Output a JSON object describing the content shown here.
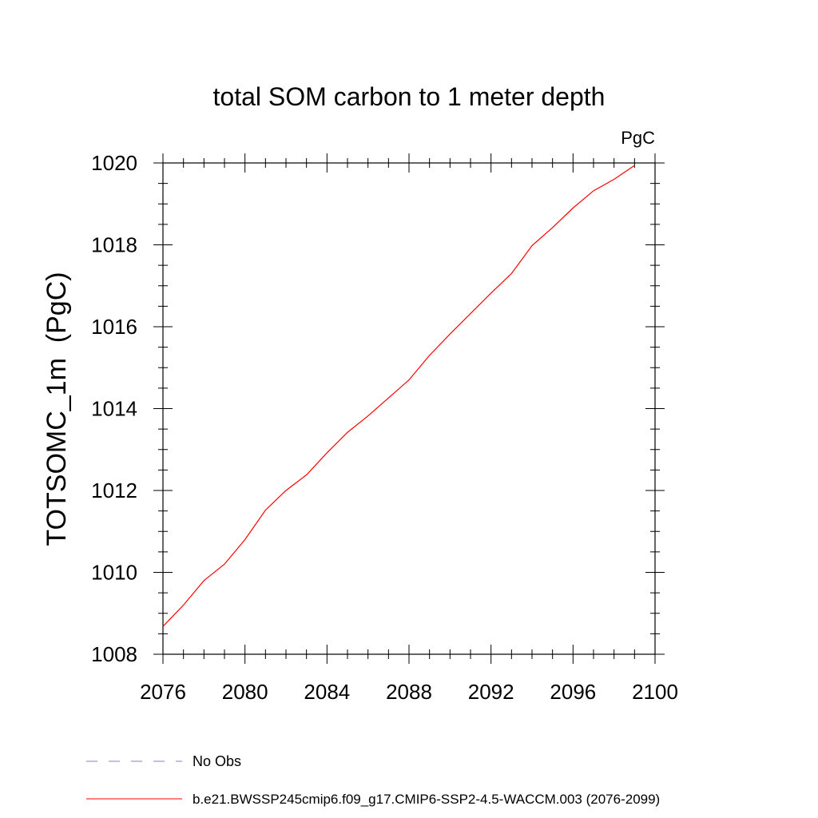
{
  "chart_data": {
    "type": "line",
    "title": "total SOM carbon to 1 meter depth",
    "units_label": "PgC",
    "ylabel": "TOTSOMC_1m  (PgC)",
    "xlabel": "",
    "xlim": [
      2076,
      2100
    ],
    "ylim": [
      1008,
      1020
    ],
    "x_ticks": [
      2076,
      2080,
      2084,
      2088,
      2092,
      2096,
      2100
    ],
    "y_ticks": [
      1008,
      1010,
      1012,
      1014,
      1016,
      1018,
      1020
    ],
    "x_minor_step": 1,
    "y_minor_step": 0.5,
    "grid": false,
    "series": [
      {
        "name": "b.e21.BWSSP245cmip6.f09_g17.CMIP6-SSP2-4.5-WACCM.003 (2076-2099)",
        "color": "#ff0000",
        "dash": "solid",
        "x": [
          2076,
          2077,
          2078,
          2079,
          2080,
          2081,
          2082,
          2083,
          2084,
          2085,
          2086,
          2087,
          2088,
          2089,
          2090,
          2091,
          2092,
          2093,
          2094,
          2095,
          2096,
          2097,
          2098,
          2099
        ],
        "y": [
          1008.68,
          1009.2,
          1009.8,
          1010.2,
          1010.8,
          1011.52,
          1012.0,
          1012.38,
          1012.92,
          1013.42,
          1013.82,
          1014.26,
          1014.7,
          1015.3,
          1015.82,
          1016.32,
          1016.82,
          1017.3,
          1017.98,
          1018.42,
          1018.9,
          1019.32,
          1019.6,
          1019.94
        ]
      }
    ],
    "legend": {
      "placement": "bottom",
      "entries": [
        {
          "label": "No Obs",
          "color": "#8080c0",
          "dash": "dashed"
        },
        {
          "label": "b.e21.BWSSP245cmip6.f09_g17.CMIP6-SSP2-4.5-WACCM.003 (2076-2099)",
          "color": "#ff0000",
          "dash": "solid"
        }
      ]
    }
  }
}
